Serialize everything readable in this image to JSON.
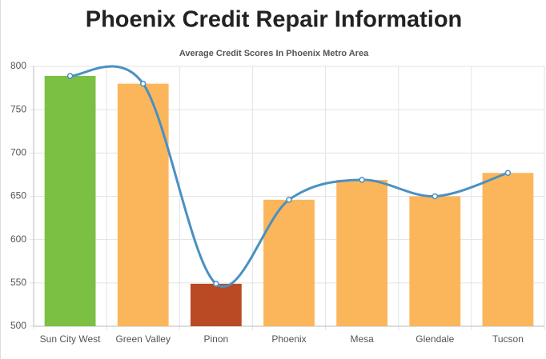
{
  "chart_data": {
    "type": "bar",
    "title": "Phoenix Credit Repair Information",
    "subtitle": "Average Credit Scores In Phoenix Metro Area",
    "categories": [
      "Sun City West",
      "Green Valley",
      "Pinon",
      "Phoenix",
      "Mesa",
      "Glendale",
      "Tucson"
    ],
    "values": [
      789,
      780,
      549,
      646,
      669,
      650,
      677
    ],
    "colors": [
      "#7bc043",
      "#fbb65b",
      "#b94a23",
      "#fbb65b",
      "#fbb65b",
      "#fbb65b",
      "#fbb65b"
    ],
    "line_color": "#4a90c2",
    "ylim": [
      500,
      800
    ],
    "yticks": [
      500,
      550,
      600,
      650,
      700,
      750,
      800
    ],
    "grid": true
  }
}
